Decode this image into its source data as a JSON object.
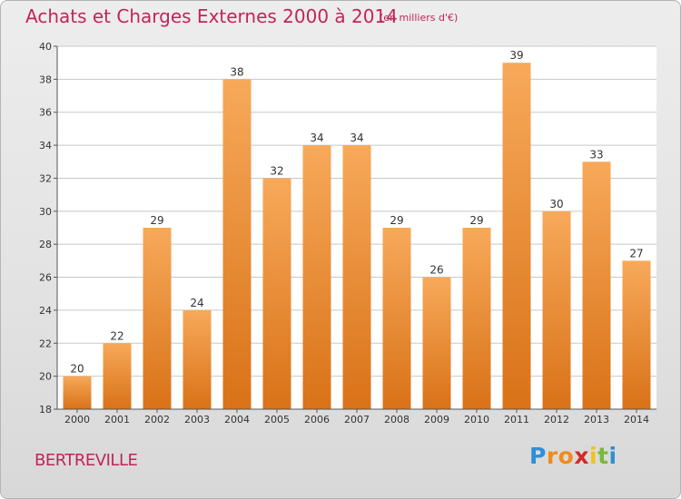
{
  "header": {
    "title": "Achats et Charges Externes 2000 à 2014",
    "unit": "(en milliers d'€)"
  },
  "footer": {
    "place": "BERTREVILLE",
    "logo_letters": [
      "P",
      "r",
      "o",
      "x",
      "i",
      "t",
      "i"
    ],
    "logo_colors": [
      "#2e8fd6",
      "#f08c1e",
      "#f08c1e",
      "#d62828",
      "#f2c21c",
      "#7ab83c",
      "#2e8fd6"
    ]
  },
  "chart_data": {
    "type": "bar",
    "title": "Achats et Charges Externes 2000 à 2014",
    "subtitle": "(en milliers d'€)",
    "categories": [
      "2000",
      "2001",
      "2002",
      "2003",
      "2004",
      "2005",
      "2006",
      "2007",
      "2008",
      "2009",
      "2010",
      "2011",
      "2012",
      "2013",
      "2014"
    ],
    "values": [
      20,
      22,
      29,
      24,
      38,
      32,
      34,
      34,
      29,
      26,
      29,
      39,
      30,
      33,
      27
    ],
    "ylim": [
      18,
      40
    ],
    "yticks": [
      18,
      20,
      22,
      24,
      26,
      28,
      30,
      32,
      34,
      36,
      38,
      40
    ],
    "grid": true,
    "bar_color": "#f0902e",
    "bar_color_light": "#f7a95a",
    "bar_color_dark": "#d97218",
    "grid_color": "#c8c8c8"
  }
}
